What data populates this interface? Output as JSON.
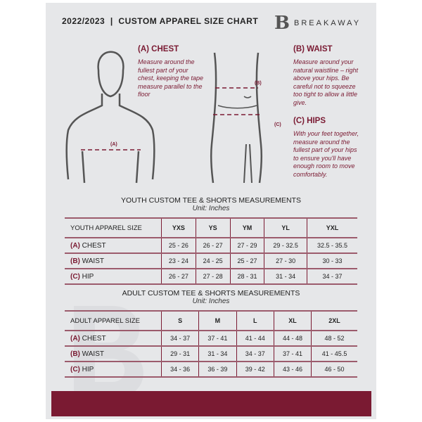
{
  "header": {
    "title": "2022/2023  |  CUSTOM APPAREL SIZE CHART",
    "brand": "BREAKAWAY",
    "logo_letter": "B"
  },
  "guides": {
    "chest": {
      "title": "(A) CHEST",
      "text": "Measure around the fullest part of your chest, keeping the tape measure parallel to the floor",
      "marker": "(A)"
    },
    "waist": {
      "title": "(B) WAIST",
      "text": "Measure around your natural waistline – right above your hips. Be careful not to squeeze too tight to allow a little give.",
      "marker": "(B)"
    },
    "hips": {
      "title": "(C) HIPS",
      "text": "With your feet together, measure around the fullest part of your hips to ensure you'll have enough room to move comfortably.",
      "marker": "(C)"
    }
  },
  "youth": {
    "title": "YOUTH CUSTOM TEE & SHORTS MEASUREMENTS",
    "unit": "Unit: Inches",
    "header": "YOUTH APPAREL SIZE",
    "sizes": [
      "YXS",
      "YS",
      "YM",
      "YL",
      "YXL"
    ],
    "rows": [
      {
        "code": "(A)",
        "name": "CHEST",
        "values": [
          "25 - 26",
          "26 - 27",
          "27 - 29",
          "29 - 32.5",
          "32.5 - 35.5"
        ]
      },
      {
        "code": "(B)",
        "name": "WAIST",
        "values": [
          "23 - 24",
          "24 - 25",
          "25 - 27",
          "27 - 30",
          "30 - 33"
        ]
      },
      {
        "code": "(C)",
        "name": "HIP",
        "values": [
          "26 - 27",
          "27 - 28",
          "28 - 31",
          "31 - 34",
          "34 - 37"
        ]
      }
    ]
  },
  "adult": {
    "title": "ADULT CUSTOM TEE & SHORTS MEASUREMENTS",
    "unit": "Unit: Inches",
    "header": "ADULT APPAREL SIZE",
    "sizes": [
      "S",
      "M",
      "L",
      "XL",
      "2XL"
    ],
    "rows": [
      {
        "code": "(A)",
        "name": "CHEST",
        "values": [
          "34 - 37",
          "37 - 41",
          "41 - 44",
          "44 - 48",
          "48 - 52"
        ]
      },
      {
        "code": "(B)",
        "name": "WAIST",
        "values": [
          "29 - 31",
          "31 - 34",
          "34 - 37",
          "37 - 41",
          "41 - 45.5"
        ]
      },
      {
        "code": "(C)",
        "name": "HIP",
        "values": [
          "34 - 36",
          "36 - 39",
          "39 - 42",
          "43 - 46",
          "46 - 50"
        ]
      }
    ]
  },
  "colors": {
    "accent": "#7a1a32",
    "panel": "#e6e7e9"
  }
}
